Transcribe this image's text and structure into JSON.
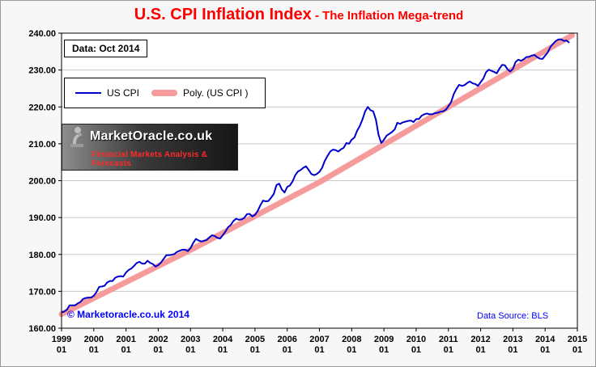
{
  "page": {
    "title_main": "U.S. CPI Inflation Index",
    "title_sub": " - The Inflation Mega-trend",
    "data_label": "Data: Oct 2014",
    "copyright": "© Marketoracle.co.uk 2014",
    "data_source": "Data Source: BLS",
    "logo": {
      "name": "MarketOracle.co.uk",
      "tagline": "Financial Markets Analysis & Forecasts"
    }
  },
  "colors": {
    "title": "#FF0000",
    "cpi_line": "#0000CC",
    "poly_line": "#F59B9B",
    "grid": "#c8c8c8",
    "axis": "#000000",
    "plot_bg": "#ffffff"
  },
  "chart_data": {
    "type": "line",
    "title": "U.S. CPI Inflation Index - The Inflation Mega-trend",
    "xlabel": "",
    "ylabel": "",
    "ylim": [
      160,
      240
    ],
    "y_ticks": [
      "160.00",
      "170.00",
      "180.00",
      "190.00",
      "200.00",
      "210.00",
      "220.00",
      "230.00",
      "240.00"
    ],
    "x_tick_years": [
      "1999",
      "2000",
      "2001",
      "2002",
      "2003",
      "2004",
      "2005",
      "2006",
      "2007",
      "2008",
      "2009",
      "2010",
      "2011",
      "2012",
      "2013",
      "2014",
      "2015"
    ],
    "x_tick_sublabel": "01",
    "x_total_months": 192,
    "x_start": "1999-01",
    "x_end": "2014-10",
    "grid": "horizontal",
    "legend_position": "upper-left",
    "series": [
      {
        "name": "US CPI",
        "color": "#0000CC",
        "width": 2,
        "values": [
          164.3,
          164.5,
          165.0,
          166.2,
          166.2,
          166.2,
          166.7,
          167.1,
          167.9,
          168.2,
          168.3,
          168.3,
          168.8,
          169.8,
          171.2,
          171.3,
          171.5,
          172.4,
          172.8,
          172.8,
          173.7,
          174.0,
          174.1,
          174.0,
          175.1,
          175.8,
          176.2,
          176.9,
          177.7,
          178.0,
          177.5,
          177.5,
          178.3,
          177.7,
          177.4,
          176.7,
          177.1,
          177.8,
          178.8,
          179.8,
          179.8,
          179.9,
          180.1,
          180.7,
          181.0,
          181.3,
          181.3,
          180.9,
          181.7,
          183.1,
          184.2,
          183.8,
          183.5,
          183.7,
          183.9,
          184.6,
          185.2,
          185.0,
          184.5,
          184.3,
          185.2,
          186.2,
          187.4,
          188.0,
          189.1,
          189.7,
          189.4,
          189.5,
          189.9,
          190.9,
          191.0,
          190.3,
          190.7,
          191.8,
          193.3,
          194.6,
          194.4,
          194.5,
          195.4,
          196.4,
          198.8,
          199.2,
          197.6,
          196.8,
          198.3,
          198.7,
          199.8,
          201.5,
          202.5,
          202.9,
          203.5,
          203.9,
          202.9,
          201.8,
          201.5,
          201.8,
          202.4,
          203.5,
          205.4,
          206.7,
          207.9,
          208.4,
          208.3,
          207.9,
          208.5,
          208.9,
          210.2,
          210.0,
          211.1,
          211.7,
          213.5,
          214.8,
          216.6,
          218.8,
          220.0,
          219.1,
          218.8,
          216.6,
          212.4,
          210.2,
          211.1,
          212.2,
          212.7,
          213.2,
          213.9,
          215.7,
          215.4,
          215.8,
          216.0,
          216.2,
          216.3,
          215.9,
          216.7,
          216.7,
          217.6,
          218.0,
          218.2,
          218.0,
          218.0,
          218.3,
          218.4,
          218.7,
          218.8,
          219.2,
          220.2,
          221.3,
          223.5,
          224.9,
          226.0,
          225.7,
          225.9,
          226.5,
          226.9,
          226.4,
          226.2,
          225.7,
          226.7,
          227.7,
          229.4,
          230.1,
          229.8,
          229.5,
          229.1,
          230.4,
          231.4,
          231.3,
          230.2,
          229.6,
          230.3,
          232.2,
          232.8,
          232.5,
          232.9,
          233.5,
          233.6,
          233.9,
          234.1,
          233.5,
          233.1,
          233.0,
          233.9,
          234.8,
          236.3,
          237.1,
          237.9,
          238.3,
          238.3,
          237.9,
          238.0,
          237.4
        ]
      },
      {
        "name": "Poly. (US CPI )",
        "color": "#F59B9B",
        "width": 7,
        "points": [
          [
            0,
            163.8
          ],
          [
            48,
            181.2
          ],
          [
            96,
            199.6
          ],
          [
            144,
            220.0
          ],
          [
            190,
            239.4
          ]
        ]
      }
    ]
  }
}
